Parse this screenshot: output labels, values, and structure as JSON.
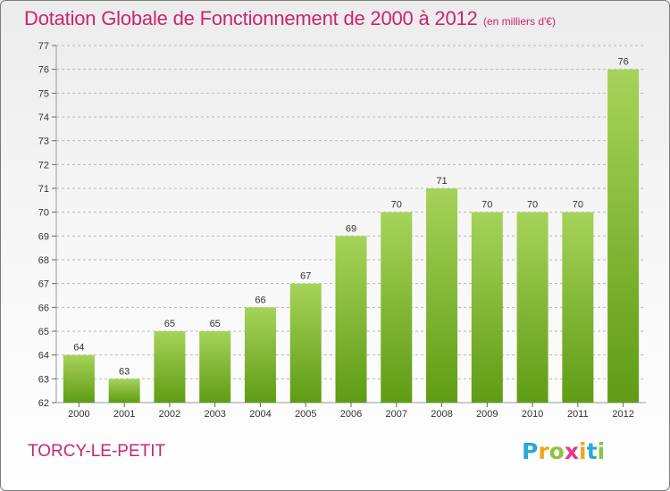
{
  "title": "Dotation Globale de Fonctionnement de 2000 à 2012",
  "subtitle": "(en milliers d'€)",
  "commune": "TORCY-LE-PETIT",
  "logo": {
    "letters": [
      {
        "ch": "P",
        "color": "#2aa8d8"
      },
      {
        "ch": "r",
        "color": "#f2a51c"
      },
      {
        "ch": "o",
        "color": "#8cc43e"
      },
      {
        "ch": "x",
        "color": "#e8348a"
      },
      {
        "ch": "i",
        "color": "#f2a51c"
      },
      {
        "ch": "t",
        "color": "#2aa8d8"
      },
      {
        "ch": "i",
        "color": "#8cc43e"
      }
    ]
  },
  "colors": {
    "title": "#c8266e",
    "bar_light": "#a6d35a",
    "bar_dark": "#5f9c14",
    "grid": "#b8b8b8",
    "axis_text": "#333333"
  },
  "chart_data": {
    "type": "bar",
    "categories": [
      "2000",
      "2001",
      "2002",
      "2003",
      "2004",
      "2005",
      "2006",
      "2007",
      "2008",
      "2009",
      "2010",
      "2011",
      "2012"
    ],
    "values": [
      64,
      63,
      65,
      65,
      66,
      67,
      69,
      70,
      71,
      70,
      70,
      70,
      76
    ],
    "ylim": [
      62,
      77
    ],
    "yticks": [
      62,
      63,
      64,
      65,
      66,
      67,
      68,
      69,
      70,
      71,
      72,
      73,
      74,
      75,
      76,
      77
    ],
    "grid": "dashed-horizontal",
    "data_labels": true
  }
}
